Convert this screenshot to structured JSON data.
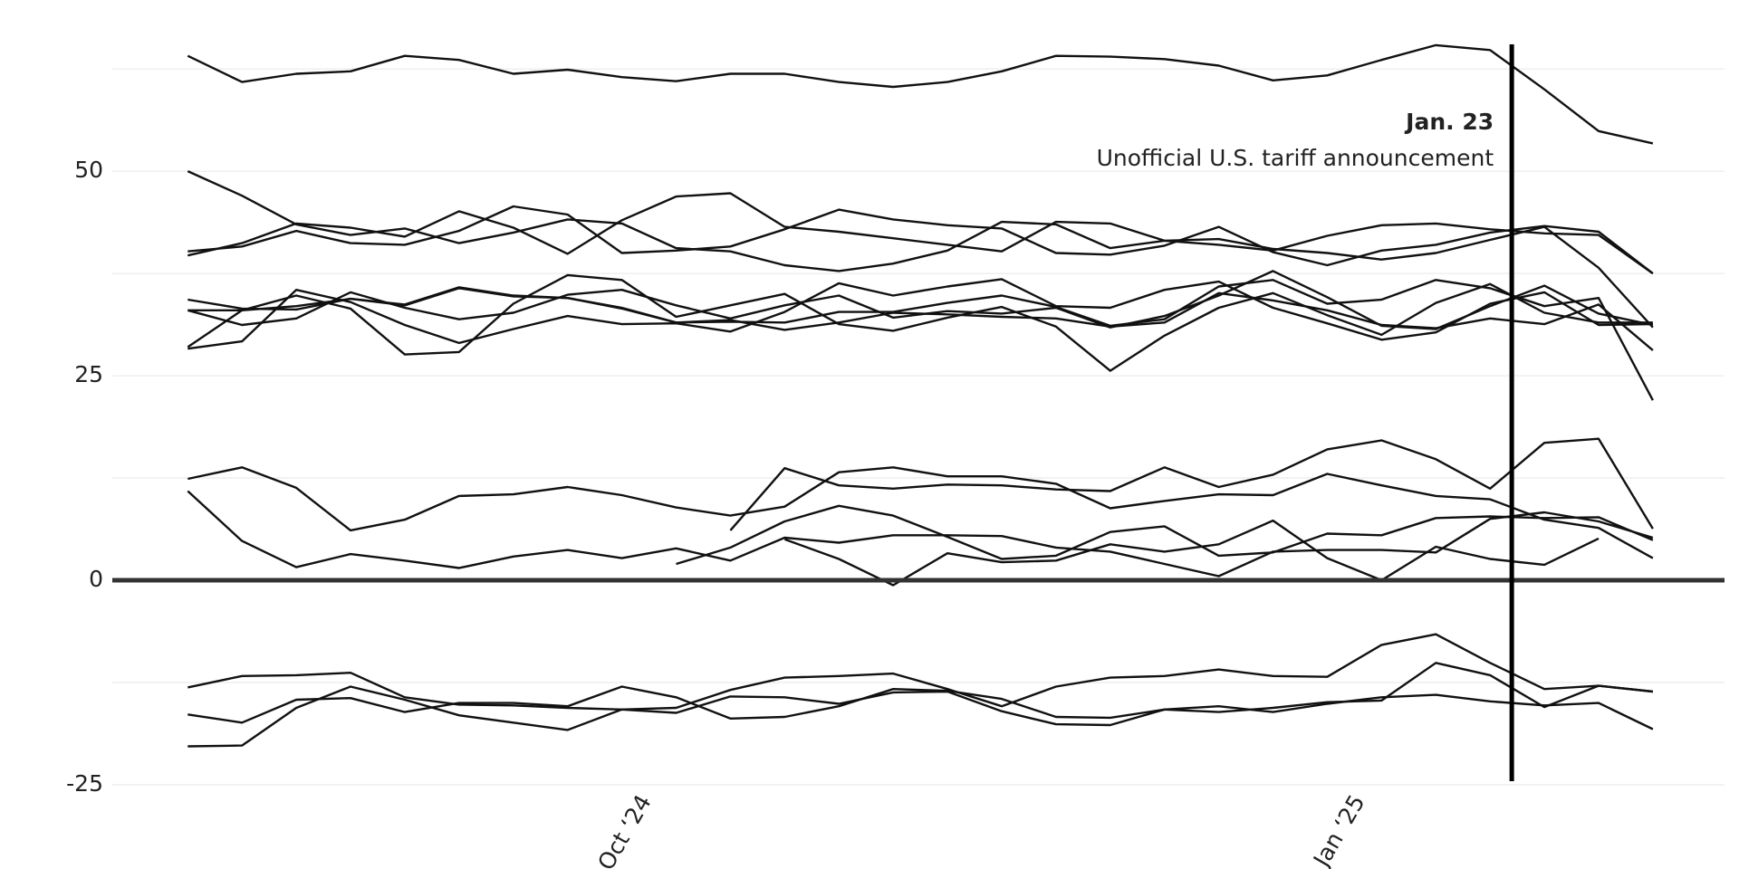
{
  "chart_data": {
    "type": "line",
    "x": [
      0,
      1,
      2,
      3,
      4,
      5,
      6,
      7,
      8,
      9,
      10,
      11,
      12,
      13,
      14,
      15,
      16,
      17,
      18,
      19,
      20,
      21,
      22,
      23,
      24,
      25,
      26,
      27
    ],
    "xlim": [
      -1.39,
      28.32
    ],
    "xticks": [
      {
        "value": 8.45,
        "label": "Oct ‘24"
      },
      {
        "value": 21.6,
        "label": "Jan ‘25"
      }
    ],
    "ylim": [
      -25,
      65.5
    ],
    "yticks": [
      -25,
      0,
      25,
      50
    ],
    "minor_gridlines": [
      -12.5,
      12.5,
      37.5,
      62.5
    ],
    "grid": true,
    "annotations": [
      {
        "x": 24.4,
        "title": "Jan. 23",
        "text": "Unofficial U.S. tariff announcement"
      }
    ],
    "series": [
      {
        "color": "#111111",
        "values": [
          64.1,
          60.9,
          61.9,
          62.2,
          64.1,
          63.6,
          61.9,
          62.4,
          61.5,
          61.0,
          61.9,
          61.9,
          60.9,
          60.3,
          60.9,
          62.2,
          64.1,
          64.0,
          63.7,
          62.9,
          61.1,
          61.7,
          63.6,
          65.4,
          64.8,
          60.0,
          54.9,
          53.4
        ]
      },
      {
        "color": "#111111",
        "values": [
          40.2,
          40.8,
          42.7,
          41.2,
          41.0,
          42.7,
          45.7,
          44.7,
          40.0,
          40.3,
          40.8,
          42.9,
          45.3,
          44.1,
          43.4,
          43.0,
          40.0,
          39.8,
          40.9,
          43.2,
          40.1,
          38.5,
          40.3,
          41.0,
          42.5,
          43.3,
          42.6,
          37.5
        ]
      },
      {
        "color": "#111111",
        "values": [
          39.7,
          41.2,
          43.6,
          43.1,
          42.0,
          45.1,
          43.1,
          39.9,
          44.0,
          46.9,
          47.3,
          43.2,
          42.6,
          41.8,
          41.0,
          40.2,
          43.8,
          43.6,
          41.5,
          41.0,
          40.3,
          42.1,
          43.4,
          43.6,
          42.9,
          42.4,
          42.2,
          37.5
        ]
      },
      {
        "color": "#111111",
        "values": [
          50.0,
          47.0,
          43.5,
          42.2,
          43.0,
          41.2,
          42.5,
          44.1,
          43.6,
          40.6,
          40.2,
          38.5,
          37.8,
          38.7,
          40.3,
          43.8,
          43.5,
          40.6,
          41.5,
          41.7,
          40.5,
          40.0,
          39.2,
          40.0,
          41.6,
          43.2,
          38.2,
          30.9
        ]
      },
      {
        "color": "#111111",
        "values": [
          34.3,
          33.2,
          33.1,
          34.4,
          33.7,
          35.8,
          34.8,
          34.5,
          33.2,
          31.5,
          31.8,
          30.6,
          31.5,
          32.7,
          32.5,
          32.2,
          32.0,
          31.0,
          31.5,
          35.1,
          34.2,
          33.0,
          31.2,
          30.8,
          32.0,
          31.3,
          33.7,
          28.1
        ]
      },
      {
        "color": "#111111",
        "values": [
          33.0,
          31.2,
          32.0,
          35.2,
          33.3,
          31.9,
          32.7,
          34.9,
          35.5,
          33.6,
          32.0,
          33.6,
          34.8,
          32.1,
          32.9,
          32.6,
          33.3,
          30.9,
          32.3,
          34.8,
          37.8,
          34.6,
          31.1,
          30.7,
          33.5,
          36.0,
          32.6,
          31.2
        ]
      },
      {
        "color": "#111111",
        "values": [
          28.5,
          33.0,
          34.8,
          33.2,
          27.6,
          27.9,
          33.8,
          37.3,
          36.7,
          32.2,
          33.6,
          35.0,
          31.3,
          30.5,
          32.1,
          33.4,
          31.0,
          25.6,
          29.9,
          33.3,
          35.1,
          32.4,
          30.0,
          33.9,
          36.2,
          32.7,
          31.5,
          31.5
        ]
      },
      {
        "color": "#111111",
        "values": [
          28.3,
          29.2,
          35.5,
          34.0,
          31.2,
          29.0,
          30.7,
          32.3,
          31.3,
          31.4,
          30.4,
          32.8,
          36.3,
          34.8,
          35.9,
          36.8,
          33.5,
          33.3,
          35.5,
          36.5,
          33.3,
          31.4,
          29.4,
          30.3,
          33.8,
          35.2,
          31.2,
          31.3
        ]
      },
      {
        "color": "#111111",
        "values": [
          33.0,
          33.0,
          33.5,
          34.4,
          33.6,
          35.7,
          34.7,
          34.5,
          33.3,
          31.5,
          31.6,
          31.5,
          32.8,
          32.8,
          33.9,
          34.8,
          33.4,
          31.1,
          31.9,
          35.9,
          36.7,
          33.8,
          34.3,
          36.7,
          35.7,
          33.5,
          34.5,
          22.0
        ]
      },
      {
        "color": "#111111",
        "values": [
          12.4,
          13.8,
          11.3,
          6.1,
          7.4,
          10.3,
          10.5,
          11.4,
          10.4,
          8.9,
          7.9,
          9.0,
          13.2,
          13.8,
          12.7,
          12.7,
          11.8,
          8.8,
          9.7,
          10.5,
          10.4,
          13.0,
          11.6,
          10.3,
          9.9,
          7.4,
          6.4,
          2.7
        ]
      },
      {
        "color": "#111111",
        "values": [
          10.9,
          4.8,
          1.6,
          3.2,
          2.4,
          1.5,
          2.9,
          3.7,
          2.7,
          3.9,
          2.4,
          5.2,
          4.6,
          5.5,
          5.5,
          5.4,
          4.0,
          3.5,
          2.0,
          0.5,
          3.5,
          3.7,
          3.7,
          3.4,
          7.5,
          8.3,
          7.2,
          5.2
        ]
      },
      {
        "color": "#111111",
        "values": [
          null,
          null,
          null,
          null,
          null,
          null,
          null,
          null,
          null,
          2.0,
          4.0,
          7.2,
          9.1,
          7.9,
          5.3,
          2.6,
          3.0,
          5.9,
          6.6,
          3.0,
          3.4,
          5.7,
          5.5,
          7.6,
          7.8,
          7.6,
          7.7,
          4.9
        ]
      },
      {
        "color": "#111111",
        "values": [
          null,
          null,
          null,
          null,
          null,
          null,
          null,
          null,
          null,
          null,
          6.1,
          13.7,
          11.6,
          11.2,
          11.7,
          11.6,
          11.1,
          10.9,
          13.8,
          11.4,
          12.9,
          16.0,
          17.1,
          14.8,
          11.2,
          16.8,
          17.3,
          6.3
        ]
      },
      {
        "color": "#111111",
        "values": [
          null,
          null,
          null,
          null,
          null,
          null,
          null,
          null,
          null,
          null,
          null,
          5.0,
          2.6,
          -0.6,
          3.3,
          2.2,
          2.4,
          4.4,
          3.5,
          4.4,
          7.3,
          2.7,
          0.0,
          4.1,
          2.6,
          1.9,
          5.1,
          null
        ]
      },
      {
        "color": "#111111",
        "values": [
          -13.1,
          -11.7,
          -11.6,
          -11.3,
          -14.3,
          -15.2,
          -15.3,
          -15.6,
          -15.8,
          -15.6,
          -13.4,
          -11.9,
          -11.7,
          -11.4,
          -13.3,
          -15.4,
          -13.0,
          -11.9,
          -11.7,
          -10.9,
          -11.7,
          -11.8,
          -7.9,
          -6.6,
          -10.1,
          -13.3,
          -12.9,
          -13.6
        ]
      },
      {
        "color": "#111111",
        "values": [
          -16.4,
          -17.4,
          -14.6,
          -14.4,
          -16.1,
          -15.0,
          -15.0,
          -15.4,
          -13.0,
          -14.3,
          -16.9,
          -16.7,
          -15.4,
          -13.3,
          -13.5,
          -14.5,
          -16.7,
          -16.8,
          -15.8,
          -16.1,
          -15.6,
          -14.9,
          -14.7,
          -10.1,
          -11.6,
          -15.5,
          -12.9,
          -13.6
        ]
      },
      {
        "color": "#111111",
        "values": [
          -20.3,
          -20.2,
          -15.6,
          -13.0,
          -14.6,
          -16.5,
          -17.4,
          -18.3,
          -15.8,
          -16.2,
          -14.2,
          -14.3,
          -15.1,
          -13.7,
          -13.6,
          -16.0,
          -17.6,
          -17.7,
          -15.8,
          -15.4,
          -16.1,
          -15.1,
          -14.3,
          -14.0,
          -14.8,
          -15.3,
          -15.0,
          -18.2
        ]
      }
    ]
  }
}
